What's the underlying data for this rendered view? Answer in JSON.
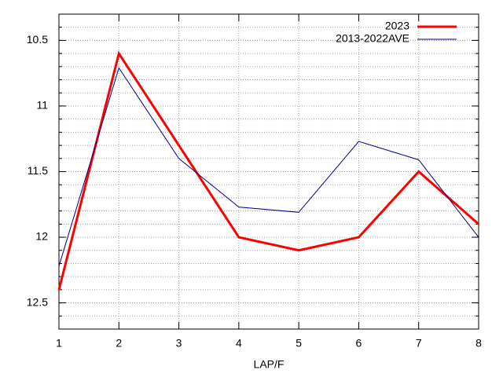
{
  "chart_data": {
    "type": "line",
    "x_label": "LAP/F",
    "x": [
      1,
      2,
      3,
      4,
      5,
      6,
      7,
      8
    ],
    "series": [
      {
        "name": "2023",
        "color": "#ff0000",
        "width": 3,
        "values": [
          12.4,
          10.6,
          11.3,
          12.0,
          12.1,
          12.0,
          11.5,
          11.9
        ]
      },
      {
        "name": "2013-2022AVE",
        "color": "#00008b",
        "width": 1,
        "values": [
          12.22,
          10.71,
          11.4,
          11.77,
          11.81,
          11.27,
          11.41,
          12.0
        ]
      }
    ],
    "xlim": [
      1,
      8
    ],
    "xticks": [
      1,
      2,
      3,
      4,
      5,
      6,
      7,
      8
    ],
    "ylim": [
      10.3,
      12.7
    ],
    "yticks": [
      10.5,
      11,
      11.5,
      12,
      12.5
    ],
    "y_reversed": true,
    "grid": true,
    "minor_grid_step": 0.1,
    "legend": "upper right"
  }
}
